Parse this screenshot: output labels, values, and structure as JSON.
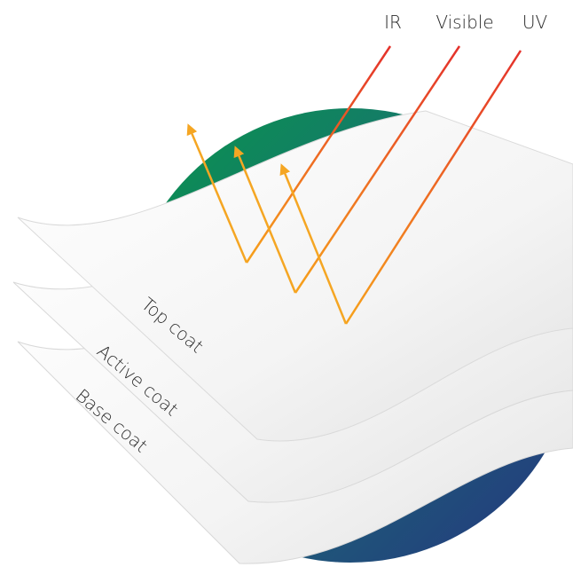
{
  "rays": [
    {
      "label": "IR"
    },
    {
      "label": "Visible"
    },
    {
      "label": "UV"
    }
  ],
  "layers": [
    {
      "label": "Top coat"
    },
    {
      "label": "Active coat"
    },
    {
      "label": "Base coat"
    }
  ]
}
